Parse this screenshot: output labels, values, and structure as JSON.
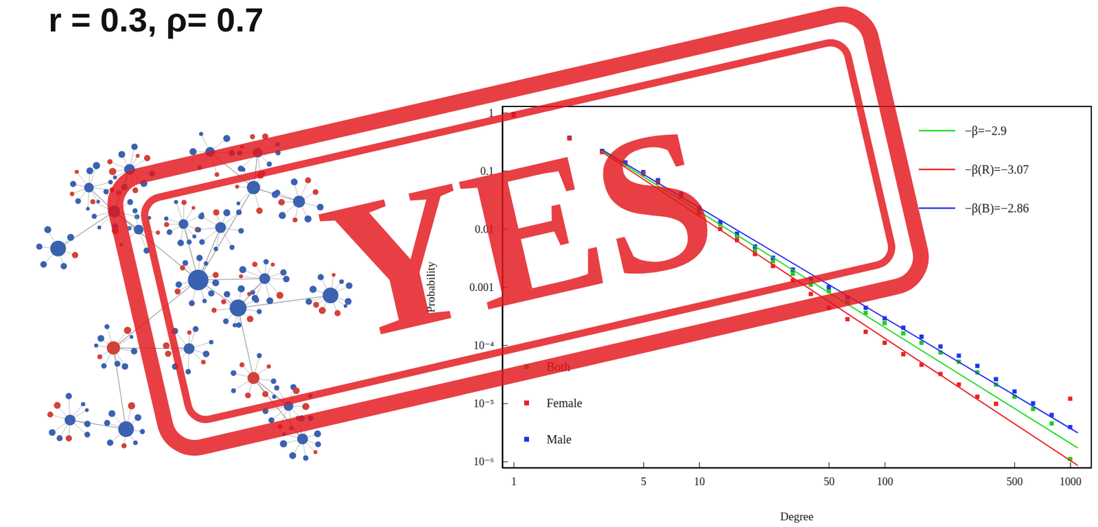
{
  "chart_data": {
    "type": "scatter",
    "title": "r = 0.3, ρ= 0.7",
    "x_label": "Degree",
    "y_label": "Probability",
    "log": true,
    "annotations": [
      {
        "text": "YES"
      }
    ],
    "xlim": [
      0.87,
      1300
    ],
    "ylim": [
      7.8e-07,
      1.28
    ],
    "xticks": [
      1,
      5,
      10,
      50,
      100,
      500,
      1000
    ],
    "yticks": [
      1,
      0.1,
      0.01,
      0.001,
      {
        "value": 0.0001,
        "label": "10⁻⁴"
      },
      {
        "value": 1e-05,
        "label": "10⁻⁵"
      },
      {
        "value": 1e-06,
        "label": "10⁻⁶"
      }
    ],
    "x": [
      1,
      2,
      3,
      4,
      5,
      6,
      8,
      10,
      13,
      16,
      20,
      25,
      32,
      40,
      50,
      63,
      79,
      100,
      126,
      158,
      200,
      251,
      316,
      398,
      501,
      631,
      794,
      1000
    ],
    "series": [
      {
        "name": "Both",
        "color": "#22cc22",
        "marker": "square",
        "legend": "bottom-left",
        "values": [
          0.93,
          0.37,
          0.22,
          0.135,
          0.092,
          0.066,
          0.038,
          0.021,
          0.012,
          0.0075,
          0.0044,
          0.0028,
          0.0017,
          0.0011,
          0.00085,
          0.00055,
          0.00036,
          0.00024,
          0.00016,
          0.00011,
          7.5e-05,
          5.2e-05,
          3.4e-05,
          2.1e-05,
          1.3e-05,
          8e-06,
          4.5e-06,
          1.1e-06
        ]
      },
      {
        "name": "Female",
        "color": "#ee2222",
        "marker": "square",
        "legend": "bottom-left",
        "values": [
          0.9,
          0.36,
          0.21,
          0.13,
          0.088,
          0.063,
          0.036,
          0.019,
          0.01,
          0.0064,
          0.0037,
          0.0023,
          0.0013,
          0.00076,
          0.00044,
          0.00028,
          0.00017,
          0.00011,
          7e-05,
          4.6e-05,
          3.2e-05,
          2.1e-05,
          1.3e-05,
          9.8e-06,
          null,
          null,
          null,
          1.2e-05
        ]
      },
      {
        "name": "Male",
        "color": "#2233ee",
        "marker": "square",
        "legend": "bottom-left",
        "values": [
          0.95,
          0.37,
          0.22,
          0.14,
          0.095,
          0.069,
          0.04,
          0.023,
          0.013,
          0.0083,
          0.005,
          0.0032,
          0.002,
          0.0014,
          0.001,
          0.00066,
          0.00044,
          0.00029,
          0.0002,
          0.00014,
          9.5e-05,
          6.6e-05,
          4.4e-05,
          2.6e-05,
          1.6e-05,
          1e-05,
          6.3e-06,
          3.9e-06
        ]
      },
      {
        "name": "−β=−2.9",
        "type": "line",
        "color": "#22dd22",
        "legend": "top-right",
        "x": [
          3,
          1100
        ],
        "values": [
          0.22,
          1.7e-06
        ]
      },
      {
        "name": "−β(R)=−3.07",
        "type": "line",
        "color": "#ee2222",
        "legend": "top-right",
        "x": [
          3,
          1100
        ],
        "values": [
          0.21,
          8.5e-07
        ]
      },
      {
        "name": "−β(B)=−2.86",
        "type": "line",
        "color": "#2233ee",
        "legend": "top-right",
        "x": [
          3,
          1100
        ],
        "values": [
          0.23,
          3.1e-06
        ]
      }
    ]
  }
}
